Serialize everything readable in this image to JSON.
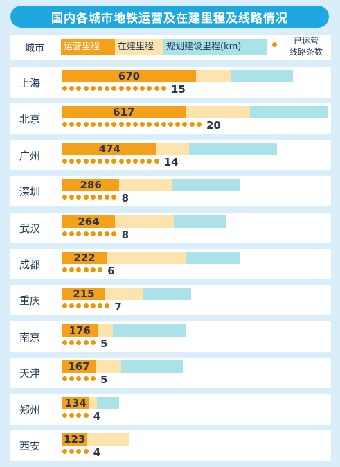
{
  "title": "国内各城市地铁运营及在建里程及线路情况",
  "legend": {
    "city": "城市",
    "operating": "运营里程",
    "building": "在建里程",
    "planned": "规划建设里程(km)",
    "lines_line1": "已运营",
    "lines_line2": "线路条数"
  },
  "colors": {
    "operating": "#f5a01a",
    "building": "#fde3ad",
    "planned": "#abe2e8",
    "dot": "#f29400",
    "title_bg": "#1fa7df",
    "background": "#d9eefa"
  },
  "chart_data": {
    "type": "bar",
    "orientation": "horizontal",
    "stacked": true,
    "categories": [
      "上海",
      "北京",
      "广州",
      "深圳",
      "武汉",
      "成都",
      "重庆",
      "南京",
      "天津",
      "郑州",
      "西安"
    ],
    "series": [
      {
        "name": "运营里程",
        "values": [
          670,
          617,
          474,
          286,
          264,
          222,
          215,
          176,
          167,
          134,
          123
        ]
      },
      {
        "name": "在建里程",
        "values": [
          178,
          325,
          160,
          265,
          294,
          398,
          190,
          79,
          128,
          38,
          213
        ]
      },
      {
        "name": "规划建设里程(km)",
        "values": [
          307,
          388,
          442,
          341,
          262,
          274,
          240,
          362,
          310,
          113,
          0
        ]
      }
    ],
    "line_counts": [
      15,
      20,
      14,
      8,
      8,
      6,
      7,
      5,
      5,
      4,
      4
    ]
  }
}
